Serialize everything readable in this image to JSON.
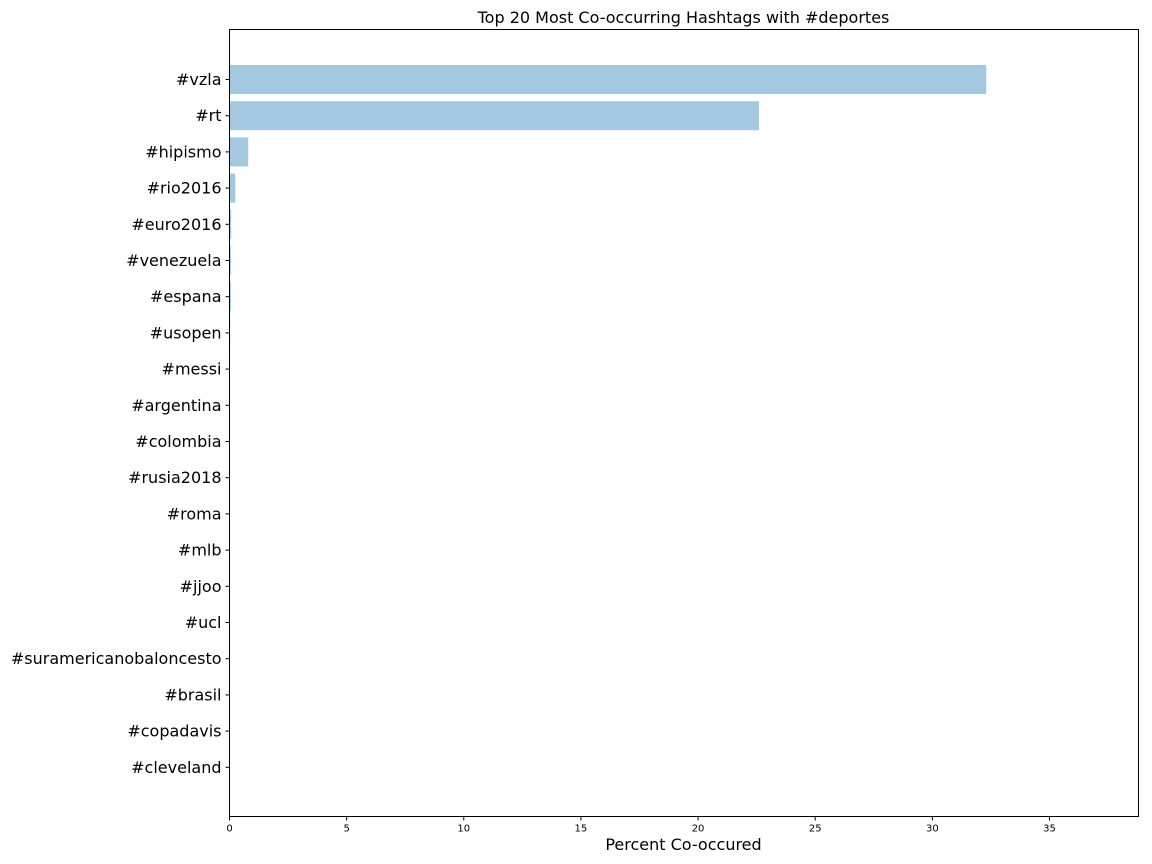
{
  "chart_data": {
    "type": "bar",
    "orientation": "horizontal",
    "title": "Top 20 Most Co-occurring Hashtags with #deportes",
    "xlabel": "Percent Co-occured",
    "ylabel": "",
    "xlim": [
      0,
      38.8
    ],
    "xticks": [
      0,
      5,
      10,
      15,
      20,
      25,
      30,
      35
    ],
    "grid": false,
    "bar_color": "#a4c8df",
    "categories": [
      "#vzla",
      "#rt",
      "#hipismo",
      "#rio2016",
      "#euro2016",
      "#venezuela",
      "#espana",
      "#usopen",
      "#messi",
      "#argentina",
      "#colombia",
      "#rusia2018",
      "#roma",
      "#mlb",
      "#jjoo",
      "#ucl",
      "#suramericanobaloncesto",
      "#brasil",
      "#copadavis",
      "#cleveland"
    ],
    "values": [
      32.3,
      22.6,
      0.8,
      0.25,
      0.07,
      0.06,
      0.06,
      0.03,
      0.02,
      0.02,
      0.02,
      0.02,
      0.02,
      0.02,
      0.02,
      0.01,
      0.01,
      0.01,
      0.01,
      0.01
    ]
  }
}
